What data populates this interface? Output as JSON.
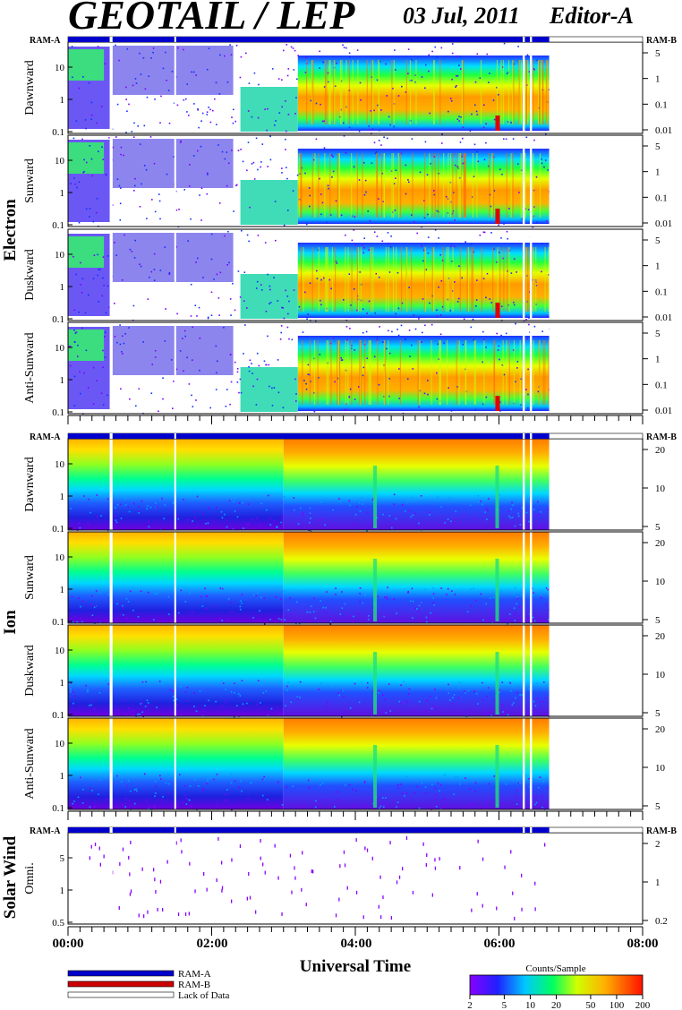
{
  "title": "GEOTAIL / LEP",
  "date": "03 Jul, 2011",
  "editor": "Editor-A",
  "xlabel": "Universal Time",
  "x_ticks": [
    "00:00",
    "02:00",
    "04:00",
    "06:00",
    "08:00"
  ],
  "ram_a_label": "RAM-A",
  "ram_b_label": "RAM-B",
  "groups": {
    "electron": "Electron",
    "ion": "Ion",
    "solar_wind": "Solar Wind"
  },
  "colors": {
    "ram_a": "#0000cc",
    "ram_b": "#cc0000",
    "lack": "#ffffff"
  },
  "legend": {
    "items": [
      {
        "label": "RAM-A",
        "color": "#0000cc"
      },
      {
        "label": "RAM-B",
        "color": "#cc0000"
      },
      {
        "label": "Lack of Data",
        "color": "#ffffff"
      }
    ],
    "colorbar_title": "Counts/Sample",
    "colorbar_ticks": [
      "2",
      "5",
      "10",
      "20",
      "50",
      "100",
      "200"
    ]
  },
  "chart_data": {
    "type": "heatmap",
    "title": "GEOTAIL / LEP",
    "subtitle": "03 Jul, 2011   Editor-A",
    "xlabel": "Universal Time",
    "x_range_hours": [
      0,
      8
    ],
    "data_end_hours": 6.7,
    "data_gaps_hours": [
      [
        0.58,
        0.62
      ],
      [
        1.48,
        1.5
      ],
      [
        6.33,
        6.36
      ],
      [
        6.43,
        6.46
      ]
    ],
    "colorscale": {
      "label": "Counts/Sample",
      "range": [
        2,
        200
      ],
      "log": true
    },
    "panels": [
      {
        "group": "Electron",
        "name": "Dawnward",
        "type": "electron",
        "yticks_left": [
          "10",
          "1",
          "0.1"
        ],
        "yticks_right": [
          "5",
          "1",
          "0.1",
          "0.01"
        ]
      },
      {
        "group": "Electron",
        "name": "Sunward",
        "type": "electron",
        "yticks_left": [
          "10",
          "1",
          "0.1"
        ],
        "yticks_right": [
          "5",
          "1",
          "0.1",
          "0.01"
        ]
      },
      {
        "group": "Electron",
        "name": "Duskward",
        "type": "electron",
        "yticks_left": [
          "10",
          "1",
          "0.1"
        ],
        "yticks_right": [
          "5",
          "1",
          "0.1",
          "0.01"
        ]
      },
      {
        "group": "Electron",
        "name": "Anti-Sunward",
        "type": "electron",
        "yticks_left": [
          "10",
          "1",
          "0.1"
        ],
        "yticks_right": [
          "5",
          "1",
          "0.1",
          "0.01"
        ]
      },
      {
        "group": "Ion",
        "name": "Dawnward",
        "type": "ion",
        "yticks_left": [
          "10",
          "1",
          "0.1"
        ],
        "yticks_right": [
          "20",
          "10",
          "5"
        ]
      },
      {
        "group": "Ion",
        "name": "Sunward",
        "type": "ion",
        "yticks_left": [
          "10",
          "1",
          "0.1"
        ],
        "yticks_right": [
          "20",
          "10",
          "5"
        ]
      },
      {
        "group": "Ion",
        "name": "Duskward",
        "type": "ion",
        "yticks_left": [
          "10",
          "1",
          "0.1"
        ],
        "yticks_right": [
          "20",
          "10",
          "5"
        ]
      },
      {
        "group": "Ion",
        "name": "Anti-Sunward",
        "type": "ion",
        "yticks_left": [
          "10",
          "1",
          "0.1"
        ],
        "yticks_right": [
          "20",
          "10",
          "5"
        ]
      },
      {
        "group": "Solar Wind",
        "name": "Omni.",
        "type": "sw",
        "yticks_left": [
          "5",
          "1",
          "0.5"
        ],
        "yticks_right": [
          "2",
          "1",
          "0.2"
        ]
      }
    ]
  }
}
